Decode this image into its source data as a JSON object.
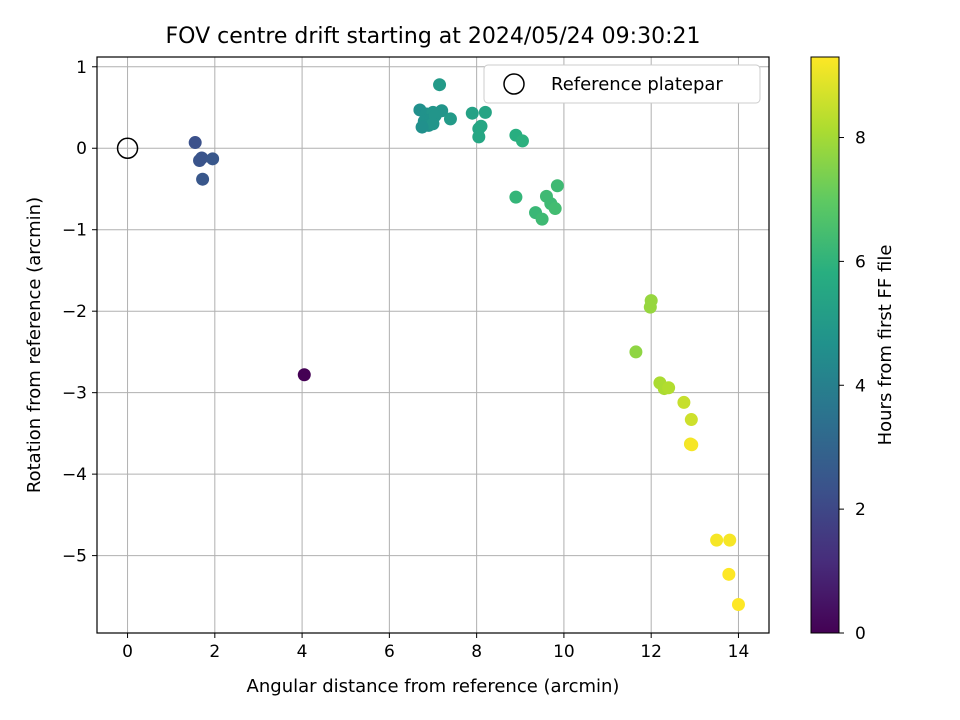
{
  "chart_data": {
    "type": "scatter",
    "title": "FOV centre drift starting at 2024/05/24 09:30:21",
    "xlabel": "Angular distance from reference (arcmin)",
    "ylabel": "Rotation from reference (arcmin)",
    "xlim": [
      -0.7,
      14.7
    ],
    "ylim": [
      -5.95,
      1.12
    ],
    "xticks": [
      0,
      2,
      4,
      6,
      8,
      10,
      12,
      14
    ],
    "yticks": [
      1,
      0,
      -1,
      -2,
      -3,
      -4,
      -5
    ],
    "ytick_labels": [
      "1",
      "0",
      "−1",
      "−2",
      "−3",
      "−4",
      "−5"
    ],
    "grid": true,
    "colormap": "viridis",
    "colorbar": {
      "label": "Hours from first FF file",
      "range": [
        0,
        9.3
      ],
      "ticks": [
        0,
        2,
        4,
        6,
        8
      ]
    },
    "reference": {
      "name": "Reference platepar",
      "x": 0,
      "y": 0,
      "marker": "open-circle"
    },
    "legend": {
      "entries": [
        "Reference platepar"
      ],
      "position": "top-right"
    },
    "points": [
      {
        "x": 4.05,
        "y": -2.78,
        "t": 0.0
      },
      {
        "x": 1.55,
        "y": 0.07,
        "t": 2.3
      },
      {
        "x": 1.7,
        "y": -0.12,
        "t": 2.4
      },
      {
        "x": 1.65,
        "y": -0.15,
        "t": 2.4
      },
      {
        "x": 1.95,
        "y": -0.13,
        "t": 2.5
      },
      {
        "x": 1.72,
        "y": -0.38,
        "t": 2.5
      },
      {
        "x": 7.15,
        "y": 0.78,
        "t": 5.0
      },
      {
        "x": 6.7,
        "y": 0.47,
        "t": 4.6
      },
      {
        "x": 6.85,
        "y": 0.42,
        "t": 4.7
      },
      {
        "x": 7.0,
        "y": 0.44,
        "t": 4.8
      },
      {
        "x": 7.2,
        "y": 0.46,
        "t": 4.8
      },
      {
        "x": 6.8,
        "y": 0.33,
        "t": 4.7
      },
      {
        "x": 6.95,
        "y": 0.35,
        "t": 4.7
      },
      {
        "x": 7.05,
        "y": 0.4,
        "t": 4.8
      },
      {
        "x": 6.9,
        "y": 0.28,
        "t": 4.7
      },
      {
        "x": 7.0,
        "y": 0.3,
        "t": 4.8
      },
      {
        "x": 6.75,
        "y": 0.26,
        "t": 4.6
      },
      {
        "x": 7.4,
        "y": 0.36,
        "t": 5.0
      },
      {
        "x": 7.9,
        "y": 0.43,
        "t": 5.3
      },
      {
        "x": 8.2,
        "y": 0.44,
        "t": 5.4
      },
      {
        "x": 8.05,
        "y": 0.24,
        "t": 5.4
      },
      {
        "x": 8.1,
        "y": 0.27,
        "t": 5.5
      },
      {
        "x": 8.05,
        "y": 0.14,
        "t": 5.5
      },
      {
        "x": 8.9,
        "y": 0.16,
        "t": 5.8
      },
      {
        "x": 9.05,
        "y": 0.09,
        "t": 5.9
      },
      {
        "x": 8.9,
        "y": -0.6,
        "t": 6.1
      },
      {
        "x": 9.85,
        "y": -0.46,
        "t": 6.3
      },
      {
        "x": 9.6,
        "y": -0.59,
        "t": 6.3
      },
      {
        "x": 9.7,
        "y": -0.68,
        "t": 6.3
      },
      {
        "x": 9.8,
        "y": -0.74,
        "t": 6.4
      },
      {
        "x": 9.35,
        "y": -0.79,
        "t": 6.2
      },
      {
        "x": 9.5,
        "y": -0.87,
        "t": 6.3
      },
      {
        "x": 12.0,
        "y": -1.87,
        "t": 7.8
      },
      {
        "x": 11.98,
        "y": -1.95,
        "t": 7.8
      },
      {
        "x": 11.65,
        "y": -2.5,
        "t": 7.7
      },
      {
        "x": 12.2,
        "y": -2.88,
        "t": 8.1
      },
      {
        "x": 12.3,
        "y": -2.95,
        "t": 8.1
      },
      {
        "x": 12.4,
        "y": -2.94,
        "t": 8.2
      },
      {
        "x": 12.75,
        "y": -3.12,
        "t": 8.5
      },
      {
        "x": 12.92,
        "y": -3.33,
        "t": 8.6
      },
      {
        "x": 12.9,
        "y": -3.63,
        "t": 9.1
      },
      {
        "x": 12.93,
        "y": -3.64,
        "t": 9.2
      },
      {
        "x": 13.5,
        "y": -4.81,
        "t": 9.2
      },
      {
        "x": 13.8,
        "y": -4.81,
        "t": 9.2
      },
      {
        "x": 13.78,
        "y": -5.23,
        "t": 9.3
      },
      {
        "x": 14.0,
        "y": -5.6,
        "t": 9.3
      }
    ]
  }
}
